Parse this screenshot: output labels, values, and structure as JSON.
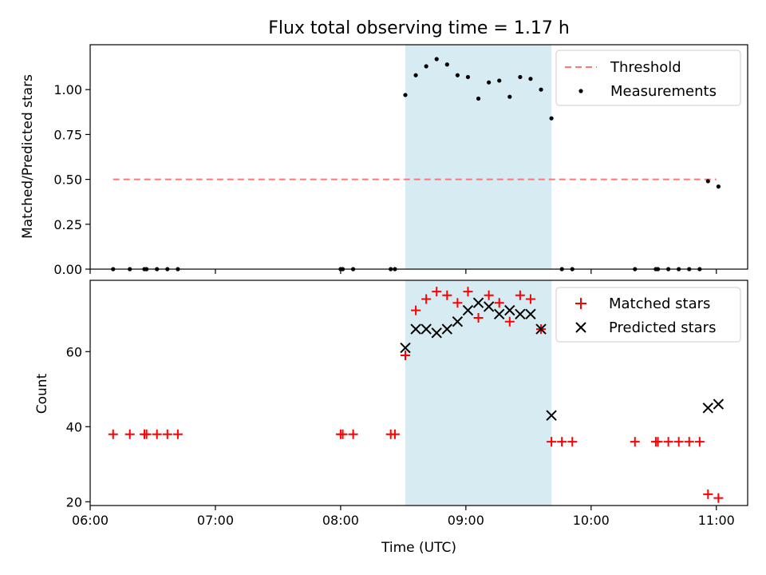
{
  "chart_data": [
    {
      "type": "scatter",
      "title": "Flux total observing time = 1.17 h",
      "xlabel": "",
      "ylabel": "Matched/Predicted stars",
      "xlim": [
        "06:00",
        "11:15"
      ],
      "ylim": [
        0,
        1.25
      ],
      "yticks": [
        0.0,
        0.25,
        0.5,
        0.75,
        1.0
      ],
      "ytick_labels": [
        "0.00",
        "0.25",
        "0.50",
        "0.75",
        "1.00"
      ],
      "show_xtick_labels": false,
      "legend_position": "upper right",
      "shaded_interval": {
        "start": "08:31",
        "end": "09:41",
        "color": "#add8e6"
      },
      "series": [
        {
          "name": "Threshold",
          "kind": "dashed-line",
          "color": "#ff7777",
          "x": [
            "06:11",
            "11:00"
          ],
          "y": [
            0.5,
            0.5
          ]
        },
        {
          "name": "Measurements",
          "kind": "dot",
          "color": "#000000",
          "x": [
            "06:11",
            "06:19",
            "06:26",
            "06:27",
            "06:32",
            "06:37",
            "06:42",
            "08:00",
            "08:01",
            "08:06",
            "08:24",
            "08:26",
            "08:31",
            "08:36",
            "08:41",
            "08:46",
            "08:51",
            "08:56",
            "09:01",
            "09:06",
            "09:11",
            "09:16",
            "09:21",
            "09:26",
            "09:31",
            "09:36",
            "09:41",
            "09:46",
            "09:51",
            "10:21",
            "10:31",
            "10:32",
            "10:37",
            "10:42",
            "10:47",
            "10:52",
            "10:56",
            "11:01"
          ],
          "y": [
            0,
            0,
            0,
            0,
            0,
            0,
            0,
            0,
            0,
            0,
            0,
            0,
            0.97,
            1.08,
            1.13,
            1.17,
            1.14,
            1.08,
            1.07,
            0.95,
            1.04,
            1.05,
            0.96,
            1.07,
            1.06,
            1.0,
            0.84,
            0,
            0,
            0,
            0,
            0,
            0,
            0,
            0,
            0,
            0.49,
            0.46
          ]
        }
      ]
    },
    {
      "type": "scatter",
      "title": "",
      "xlabel": "Time (UTC)",
      "ylabel": "Count",
      "xlim": [
        "06:00",
        "11:15"
      ],
      "ylim": [
        19,
        79
      ],
      "yticks": [
        20,
        40,
        60
      ],
      "ytick_labels": [
        "20",
        "40",
        "60"
      ],
      "xticks": [
        "06:00",
        "07:00",
        "08:00",
        "09:00",
        "10:00",
        "11:00"
      ],
      "xtick_labels": [
        "06:00",
        "07:00",
        "08:00",
        "09:00",
        "10:00",
        "11:00"
      ],
      "legend_position": "upper right",
      "shaded_interval": {
        "start": "08:31",
        "end": "09:41",
        "color": "#add8e6"
      },
      "series": [
        {
          "name": "Matched stars",
          "kind": "plus",
          "color": "#ff0000",
          "x": [
            "06:11",
            "06:19",
            "06:26",
            "06:27",
            "06:32",
            "06:37",
            "06:42",
            "08:00",
            "08:01",
            "08:06",
            "08:24",
            "08:26",
            "08:31",
            "08:36",
            "08:41",
            "08:46",
            "08:51",
            "08:56",
            "09:01",
            "09:06",
            "09:11",
            "09:16",
            "09:21",
            "09:26",
            "09:31",
            "09:36",
            "09:41",
            "09:46",
            "09:51",
            "10:21",
            "10:31",
            "10:32",
            "10:37",
            "10:42",
            "10:47",
            "10:52",
            "10:56",
            "11:01"
          ],
          "y": [
            38,
            38,
            38,
            38,
            38,
            38,
            38,
            38,
            38,
            38,
            38,
            38,
            59,
            71,
            74,
            76,
            75,
            73,
            76,
            69,
            75,
            73,
            68,
            75,
            74,
            66,
            36,
            36,
            36,
            36,
            36,
            36,
            36,
            36,
            36,
            36,
            22,
            21
          ]
        },
        {
          "name": "Predicted stars",
          "kind": "x",
          "color": "#000000",
          "x": [
            "08:31",
            "08:36",
            "08:41",
            "08:46",
            "08:51",
            "08:56",
            "09:01",
            "09:06",
            "09:11",
            "09:16",
            "09:21",
            "09:26",
            "09:31",
            "09:36",
            "09:41",
            "10:56",
            "11:01"
          ],
          "y": [
            61,
            66,
            66,
            65,
            66,
            68,
            71,
            73,
            72,
            70,
            71,
            70,
            70,
            66,
            43,
            45,
            46
          ]
        }
      ]
    }
  ]
}
